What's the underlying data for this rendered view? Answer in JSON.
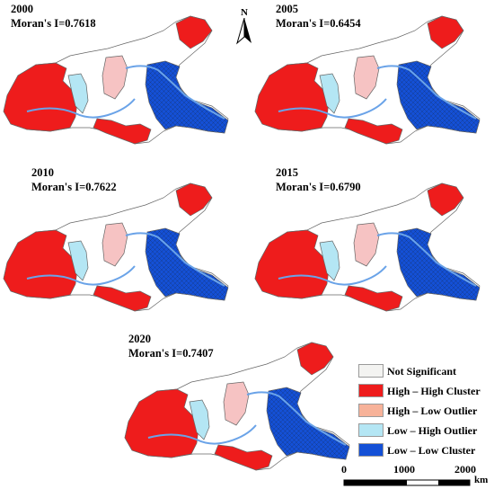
{
  "panels": [
    {
      "year": "2000",
      "moran": "Moran's I=0.7618"
    },
    {
      "year": "2005",
      "moran": "Moran's I=0.6454"
    },
    {
      "year": "2010",
      "moran": "Moran's I=0.7622"
    },
    {
      "year": "2015",
      "moran": "Moran's I=0.6790"
    },
    {
      "year": "2020",
      "moran": "Moran's I=0.7407"
    }
  ],
  "north_arrow": {
    "label": "N"
  },
  "legend": [
    {
      "label": "Not Significant",
      "color": "#f3f3f1"
    },
    {
      "label": "High – High Cluster",
      "color": "#ee1c1c"
    },
    {
      "label": "High – Low Outlier",
      "color": "#f7b299"
    },
    {
      "label": "Low – High Outlier",
      "color": "#b4e6f4"
    },
    {
      "label": "Low – Low Cluster",
      "color": "#1450d6"
    }
  ],
  "scale_bar": {
    "ticks": [
      "0",
      "1000",
      "2000"
    ],
    "unit": "km"
  },
  "map_colors": {
    "high_high": "#ee1c1c",
    "low_low": "#1450d6",
    "not_significant": "#ffffff",
    "high_low": "#f6c3c3",
    "low_high": "#b4e6f4",
    "river": "#6aa3e8"
  }
}
